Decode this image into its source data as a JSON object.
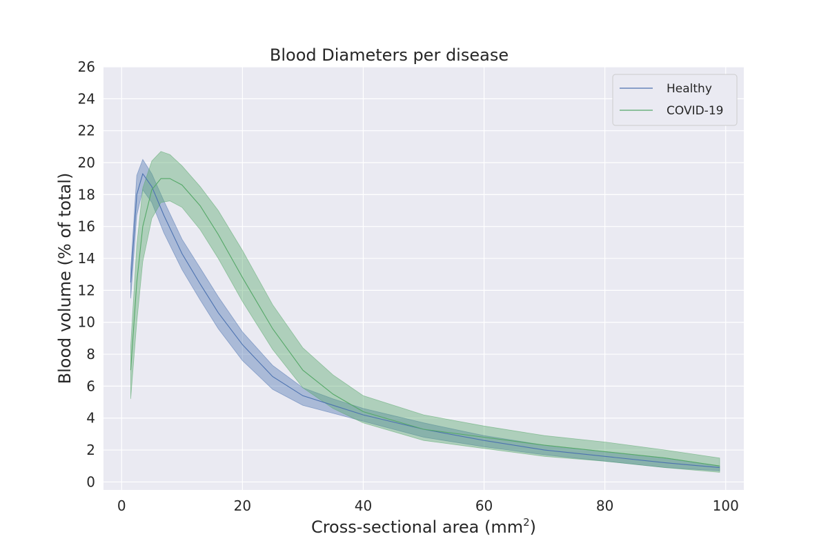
{
  "chart_data": {
    "type": "line",
    "title": "Blood Diameters per disease",
    "xlabel_main": "Cross-sectional area (mm",
    "xlabel_sup": "2",
    "xlabel_tail": ")",
    "ylabel": "Blood volume (% of total)",
    "xlim": [
      -3,
      103
    ],
    "ylim": [
      -0.5,
      26
    ],
    "xticks": [
      0,
      20,
      40,
      60,
      80,
      100
    ],
    "yticks": [
      0,
      2,
      4,
      6,
      8,
      10,
      12,
      14,
      16,
      18,
      20,
      22,
      24,
      26
    ],
    "grid": true,
    "legend_position": "top-right",
    "series": [
      {
        "name": "Healthy",
        "color": "#4c72b0",
        "x": [
          1.5,
          2.5,
          3.5,
          5,
          7,
          10,
          13,
          16,
          20,
          25,
          30,
          35,
          40,
          50,
          60,
          70,
          80,
          90,
          99
        ],
        "mean": [
          12.5,
          18.0,
          19.3,
          18.5,
          16.7,
          14.3,
          12.4,
          10.6,
          8.6,
          6.6,
          5.4,
          4.8,
          4.2,
          3.3,
          2.6,
          2.0,
          1.6,
          1.2,
          0.9
        ],
        "lower": [
          11.5,
          16.7,
          18.3,
          17.5,
          15.6,
          13.3,
          11.4,
          9.6,
          7.6,
          5.8,
          4.8,
          4.3,
          3.8,
          2.8,
          2.2,
          1.7,
          1.3,
          0.9,
          0.7
        ],
        "upper": [
          13.3,
          19.2,
          20.2,
          19.3,
          17.6,
          15.2,
          13.4,
          11.6,
          9.4,
          7.3,
          5.9,
          5.2,
          4.6,
          3.7,
          2.9,
          2.3,
          1.9,
          1.5,
          1.0
        ]
      },
      {
        "name": "COVID-19",
        "color": "#55a868",
        "x": [
          1.5,
          2.5,
          3.5,
          5,
          6.5,
          8,
          10,
          13,
          16,
          20,
          25,
          30,
          35,
          40,
          50,
          60,
          70,
          80,
          90,
          99
        ],
        "mean": [
          7.0,
          12.5,
          16.0,
          18.3,
          19.0,
          19.0,
          18.6,
          17.3,
          15.5,
          12.8,
          9.6,
          7.0,
          5.5,
          4.4,
          3.3,
          2.8,
          2.3,
          1.9,
          1.5,
          1.0
        ],
        "lower": [
          5.2,
          10.0,
          13.8,
          16.5,
          17.5,
          17.6,
          17.2,
          15.8,
          14.0,
          11.3,
          8.3,
          5.9,
          4.6,
          3.7,
          2.6,
          2.1,
          1.6,
          1.3,
          0.9,
          0.6
        ],
        "upper": [
          8.5,
          14.8,
          18.4,
          20.1,
          20.7,
          20.5,
          19.8,
          18.5,
          17.0,
          14.5,
          11.1,
          8.4,
          6.7,
          5.4,
          4.2,
          3.5,
          2.9,
          2.5,
          2.0,
          1.5
        ]
      }
    ]
  },
  "colors": {
    "plot_background": "#eaeaf2",
    "grid": "#ffffff",
    "legend_background": "#eaeaf2",
    "legend_border": "#cccccc"
  }
}
